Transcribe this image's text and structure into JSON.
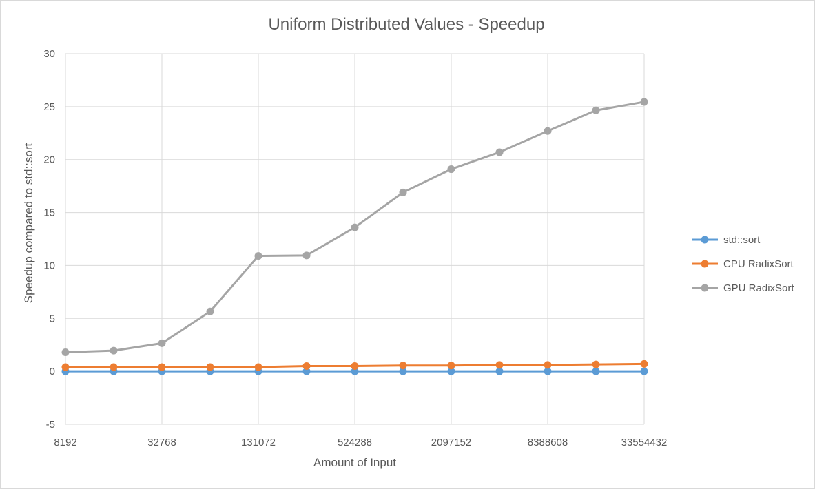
{
  "chart_data": {
    "type": "line",
    "title": "Uniform Distributed Values - Speedup",
    "xlabel": "Amount of Input",
    "ylabel": "Speedup compared to std::sort",
    "x": [
      8192,
      16384,
      32768,
      65536,
      131072,
      262144,
      524288,
      1048576,
      2097152,
      4194304,
      8388608,
      16777216,
      33554432
    ],
    "x_tick_labels": [
      "8192",
      "32768",
      "131072",
      "524288",
      "2097152",
      "8388608",
      "33554432"
    ],
    "x_tick_label_values": [
      8192,
      32768,
      131072,
      524288,
      2097152,
      8388608,
      33554432
    ],
    "ylim": [
      -5,
      30
    ],
    "y_ticks": [
      -5,
      0,
      5,
      10,
      15,
      20,
      25,
      30
    ],
    "grid": true,
    "legend_position": "right",
    "series": [
      {
        "name": "std::sort",
        "color": "#5b9bd5",
        "values": [
          0,
          0,
          0,
          0,
          0,
          0,
          0,
          0,
          0,
          0,
          0,
          0,
          0
        ]
      },
      {
        "name": "CPU RadixSort",
        "color": "#ed7d31",
        "values": [
          0.4,
          0.4,
          0.4,
          0.4,
          0.4,
          0.5,
          0.5,
          0.55,
          0.55,
          0.6,
          0.6,
          0.65,
          0.7
        ]
      },
      {
        "name": "GPU RadixSort",
        "color": "#a5a5a5",
        "values": [
          1.8,
          1.95,
          2.65,
          5.65,
          10.9,
          10.95,
          13.6,
          16.9,
          19.1,
          20.7,
          22.7,
          24.65,
          25.45
        ]
      }
    ]
  }
}
